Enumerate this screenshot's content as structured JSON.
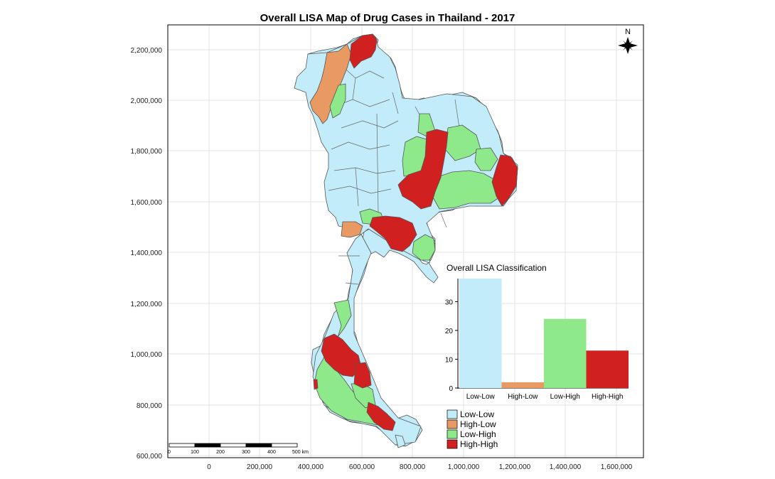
{
  "title": "Overall LISA Map of Drug Cases in Thailand - 2017",
  "north_arrow": {
    "label": "N",
    "icon": "north-arrow-icon"
  },
  "axes": {
    "x_ticks": [
      "0",
      "200,000",
      "400,000",
      "600,000",
      "800,000",
      "1,000,000",
      "1,200,000",
      "1,400,000",
      "1,600,000"
    ],
    "y_ticks": [
      "2,200,000",
      "2,000,000",
      "1,800,000",
      "1,600,000",
      "1,400,000",
      "1,200,000",
      "1,000,000",
      "800,000",
      "600,000"
    ]
  },
  "scale_bar": {
    "labels": [
      "0",
      "100",
      "200",
      "300",
      "400",
      "500 km"
    ]
  },
  "colors": {
    "low_low": "#c3ecfa",
    "high_low": "#e99a62",
    "low_high": "#8de98a",
    "high_high": "#d12020",
    "border": "#555555",
    "grid": "#e3e3e3"
  },
  "legend": {
    "items": [
      {
        "label": "Low-Low",
        "color": "#c3ecfa"
      },
      {
        "label": "High-Low",
        "color": "#e99a62"
      },
      {
        "label": "Low-High",
        "color": "#8de98a"
      },
      {
        "label": "High-High",
        "color": "#d12020"
      }
    ]
  },
  "chart_data": {
    "type": "bar",
    "title": "Overall LISA Classification",
    "categories": [
      "Low-Low",
      "High-Low",
      "Low-High",
      "High-High"
    ],
    "values": [
      38,
      2,
      24,
      13
    ],
    "colors": [
      "#c3ecfa",
      "#e99a62",
      "#8de98a",
      "#d12020"
    ],
    "y_ticks": [
      0,
      10,
      20,
      30
    ],
    "ylim": [
      0,
      38
    ],
    "grid": false
  }
}
